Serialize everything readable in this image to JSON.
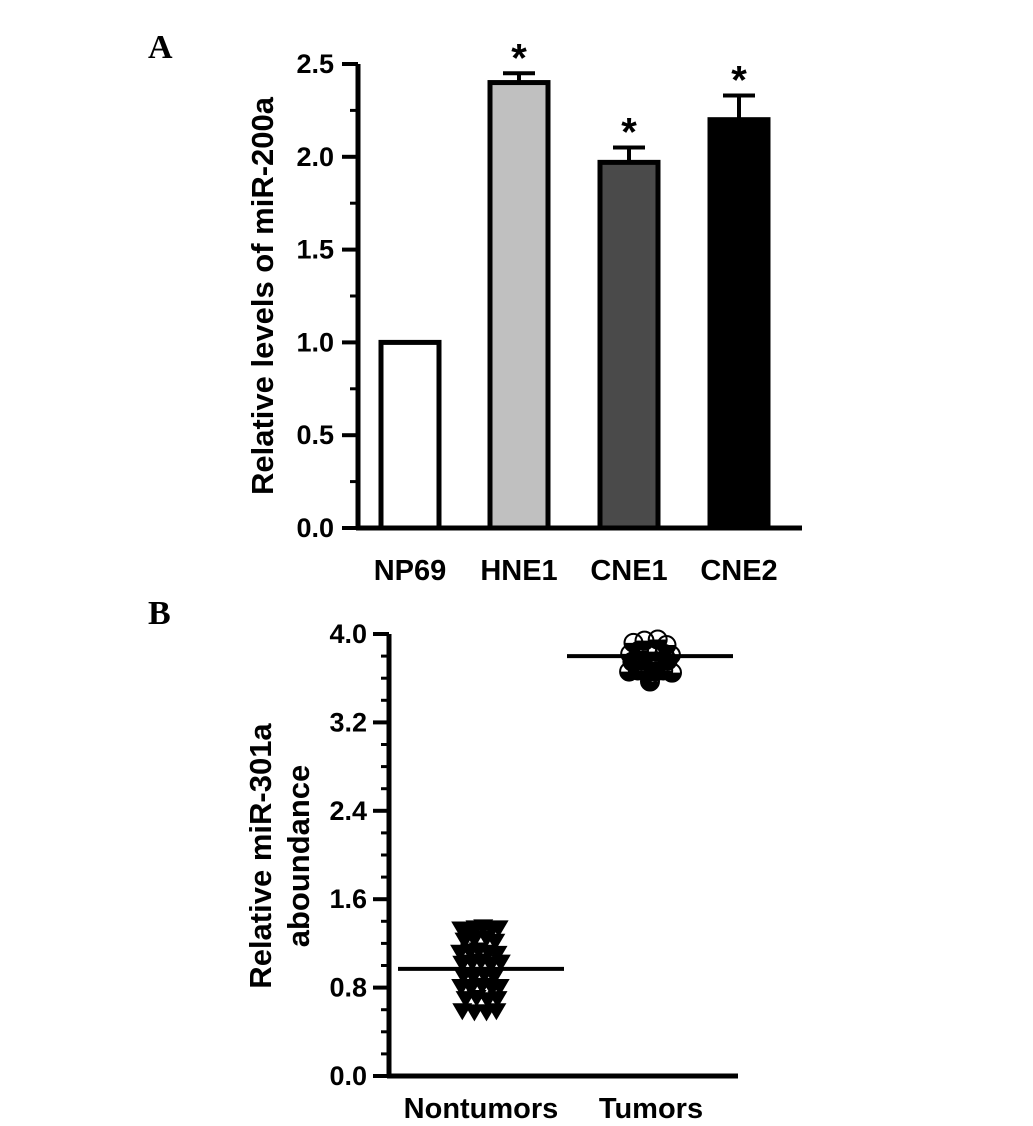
{
  "chart_data": [
    {
      "panel": "A",
      "type": "bar",
      "ylabel": "Relative levels of miR-200a",
      "xlabel": "",
      "categories": [
        "NP69",
        "HNE1",
        "CNE1",
        "CNE2"
      ],
      "values": [
        1.0,
        2.4,
        1.97,
        2.2
      ],
      "errors": [
        0,
        0.05,
        0.08,
        0.13
      ],
      "significance": [
        "",
        "*",
        "*",
        "*"
      ],
      "fills": [
        "#ffffff",
        "#c0c0c0",
        "#4a4a4a",
        "#000000"
      ],
      "ylim": [
        0,
        2.5
      ],
      "yticks": [
        "0.0",
        "0.5",
        "1.0",
        "1.5",
        "2.0",
        "2.5"
      ],
      "grid": false
    },
    {
      "panel": "B",
      "type": "scatter",
      "ylabel_lines": [
        "Relative miR-301a",
        "aboundance"
      ],
      "xlabel": "",
      "categories": [
        "Nontumors",
        "Tumors"
      ],
      "ylim": [
        0,
        4.0
      ],
      "yticks": [
        "0.0",
        "0.8",
        "1.6",
        "2.4",
        "3.2",
        "4.0"
      ],
      "grid": false,
      "series": [
        {
          "category": "Nontumors",
          "marker": "filled-down-triangle",
          "mean": 0.97,
          "points": [
            [
              -0.18,
              1.33
            ],
            [
              -0.12,
              1.31
            ],
            [
              -0.05,
              1.34
            ],
            [
              0.02,
              1.35
            ],
            [
              0.1,
              1.33
            ],
            [
              0.16,
              1.34
            ],
            [
              -0.15,
              1.23
            ],
            [
              -0.06,
              1.24
            ],
            [
              0.05,
              1.25
            ],
            [
              0.13,
              1.22
            ],
            [
              -0.19,
              1.12
            ],
            [
              -0.1,
              1.13
            ],
            [
              -0.02,
              1.14
            ],
            [
              0.07,
              1.12
            ],
            [
              0.15,
              1.11
            ],
            [
              -0.17,
              1.02
            ],
            [
              -0.08,
              1.03
            ],
            [
              0.0,
              1.04
            ],
            [
              0.09,
              1.01
            ],
            [
              0.18,
              1.03
            ],
            [
              -0.16,
              0.91
            ],
            [
              -0.07,
              0.9
            ],
            [
              0.03,
              0.92
            ],
            [
              0.12,
              0.9
            ],
            [
              -0.18,
              0.81
            ],
            [
              -0.09,
              0.8
            ],
            [
              0.01,
              0.82
            ],
            [
              0.1,
              0.8
            ],
            [
              0.17,
              0.81
            ],
            [
              -0.14,
              0.7
            ],
            [
              -0.04,
              0.71
            ],
            [
              0.06,
              0.69
            ],
            [
              0.15,
              0.7
            ],
            [
              -0.17,
              0.59
            ],
            [
              -0.06,
              0.58
            ],
            [
              0.05,
              0.58
            ],
            [
              0.14,
              0.59
            ]
          ]
        },
        {
          "category": "Tumors",
          "marker": "half-filled-circle",
          "mean": 3.8,
          "points": [
            [
              -0.15,
              3.92
            ],
            [
              -0.05,
              3.94
            ],
            [
              0.07,
              3.95
            ],
            [
              0.15,
              3.9
            ],
            [
              -0.18,
              3.82
            ],
            [
              -0.1,
              3.85
            ],
            [
              -0.02,
              3.83
            ],
            [
              0.06,
              3.84
            ],
            [
              0.13,
              3.82
            ],
            [
              0.19,
              3.81
            ],
            [
              -0.16,
              3.75
            ],
            [
              -0.08,
              3.76
            ],
            [
              0.0,
              3.74
            ],
            [
              0.08,
              3.75
            ],
            [
              0.16,
              3.76
            ],
            [
              -0.19,
              3.66
            ],
            [
              -0.11,
              3.67
            ],
            [
              -0.03,
              3.65
            ],
            [
              0.05,
              3.66
            ],
            [
              0.12,
              3.67
            ],
            [
              0.2,
              3.65
            ],
            [
              0.0,
              3.57
            ]
          ]
        }
      ]
    }
  ]
}
